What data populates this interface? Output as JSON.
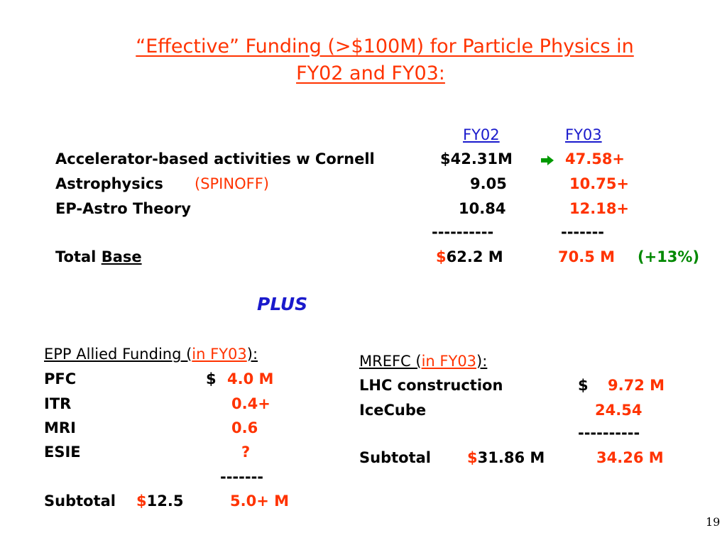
{
  "title": {
    "line1": "“Effective” Funding (>$100M) for Particle Physics in",
    "line2": "FY02 and FY03:"
  },
  "table": {
    "headers": {
      "fy02": "FY02",
      "fy03": "FY03"
    },
    "rows": [
      {
        "label": "Accelerator-based activities w Cornell",
        "fy02": "$42.31M",
        "fy03": "47.58+"
      },
      {
        "label": "Astrophysics",
        "note": "(SPINOFF)",
        "fy02": "9.05",
        "fy03": "10.75+"
      },
      {
        "label": "EP-Astro Theory",
        "fy02": "10.84",
        "fy03": "12.18+"
      }
    ],
    "divider_fy02": "----------",
    "divider_fy03": "-------",
    "total": {
      "label": "Total",
      "label_ul": "Base",
      "dollar": "$",
      "fy02": "62.2 M",
      "fy03": "70.5 M",
      "change": "(+13%)"
    }
  },
  "plus": "PLUS",
  "allied": {
    "heading_pre": "EPP Allied Funding (",
    "heading_highlight": "in FY03",
    "heading_post": "):",
    "rows": [
      {
        "label": "PFC",
        "prefix": "$",
        "value": "4.0 M"
      },
      {
        "label": "ITR",
        "value": "0.4+"
      },
      {
        "label": "MRI",
        "value": "0.6"
      },
      {
        "label": "ESIE",
        "value": "?"
      }
    ],
    "divider": "-------",
    "subtotal": {
      "label": "Subtotal",
      "dollar": "$",
      "fy02": "12.5",
      "fy03": "5.0+ M"
    }
  },
  "mrefc": {
    "heading_pre": "MREFC (",
    "heading_highlight": "in FY03",
    "heading_post": "):",
    "rows": [
      {
        "label": "LHC construction",
        "prefix": "$",
        "value": "9.72 M"
      },
      {
        "label": "IceCube",
        "value": "24.54"
      }
    ],
    "divider": "----------",
    "subtotal": {
      "label": "Subtotal",
      "dollar": "$",
      "fy02": "31.86 M",
      "fy03": "34.26 M"
    }
  },
  "page_number": "19",
  "colors": {
    "accent_red": "#ff3300",
    "green": "#008800",
    "blue": "#1a1acc",
    "arrow": "#009900"
  }
}
